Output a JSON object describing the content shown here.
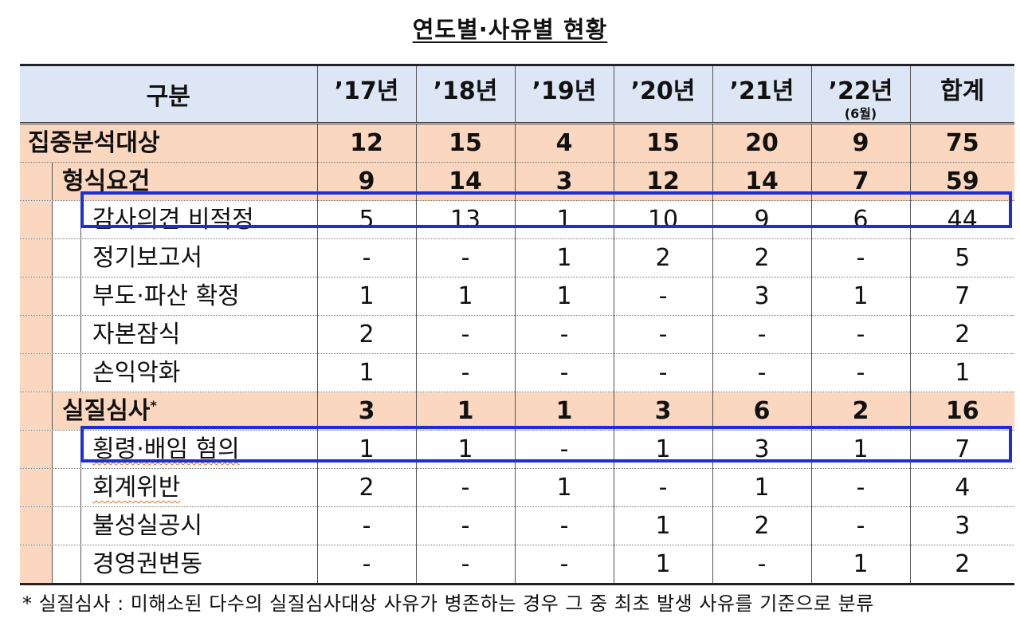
{
  "title": "연도별·사유별 현황",
  "headers": [
    "구분",
    "’17년",
    "’18년",
    "’19년",
    "’20년",
    "’21년",
    "’22년",
    "합계"
  ],
  "header_sub": "(6월)",
  "rows": [
    {
      "label": "집중분석대상",
      "level": 0,
      "values": [
        "12",
        "15",
        "4",
        "15",
        "20",
        "9",
        "75"
      ]
    },
    {
      "label": "형식요건",
      "level": 1,
      "values": [
        "9",
        "14",
        "3",
        "12",
        "14",
        "7",
        "59"
      ]
    },
    {
      "label": "감사의견 비적정",
      "level": 2,
      "values": [
        "5",
        "13",
        "1",
        "10",
        "9",
        "6",
        "44"
      ],
      "highlight": true
    },
    {
      "label": "정기보고서",
      "level": 2,
      "values": [
        "-",
        "-",
        "1",
        "2",
        "2",
        "-",
        "5"
      ]
    },
    {
      "label": "부도·파산 확정",
      "level": 2,
      "values": [
        "1",
        "1",
        "1",
        "-",
        "3",
        "1",
        "7"
      ]
    },
    {
      "label": "자본잠식",
      "level": 2,
      "values": [
        "2",
        "-",
        "-",
        "-",
        "-",
        "-",
        "2"
      ]
    },
    {
      "label": "손익악화",
      "level": 2,
      "values": [
        "1",
        "-",
        "-",
        "-",
        "-",
        "-",
        "1"
      ]
    },
    {
      "label": "실질심사",
      "level": 1,
      "marker": "*",
      "values": [
        "3",
        "1",
        "1",
        "3",
        "6",
        "2",
        "16"
      ]
    },
    {
      "label": "횡령·배임 혐의",
      "level": 2,
      "values": [
        "1",
        "1",
        "-",
        "1",
        "3",
        "1",
        "7"
      ],
      "highlight": true
    },
    {
      "label": "회계위반",
      "level": 2,
      "values": [
        "2",
        "-",
        "1",
        "-",
        "1",
        "-",
        "4"
      ]
    },
    {
      "label": "불성실공시",
      "level": 2,
      "values": [
        "-",
        "-",
        "-",
        "1",
        "2",
        "-",
        "3"
      ]
    },
    {
      "label": "경영권변동",
      "level": 2,
      "values": [
        "-",
        "-",
        "-",
        "1",
        "-",
        "1",
        "2"
      ]
    }
  ],
  "footnote": "* 실질심사 : 미해소된 다수의 실질심사대상 사유가 병존하는 경우 그 중 최초 발생 사유를 기준으로 분류",
  "colors": {
    "header_bg": "#dce6f4",
    "category_bg": "#fbd7bf",
    "highlight_border": "#1c2fd6"
  }
}
